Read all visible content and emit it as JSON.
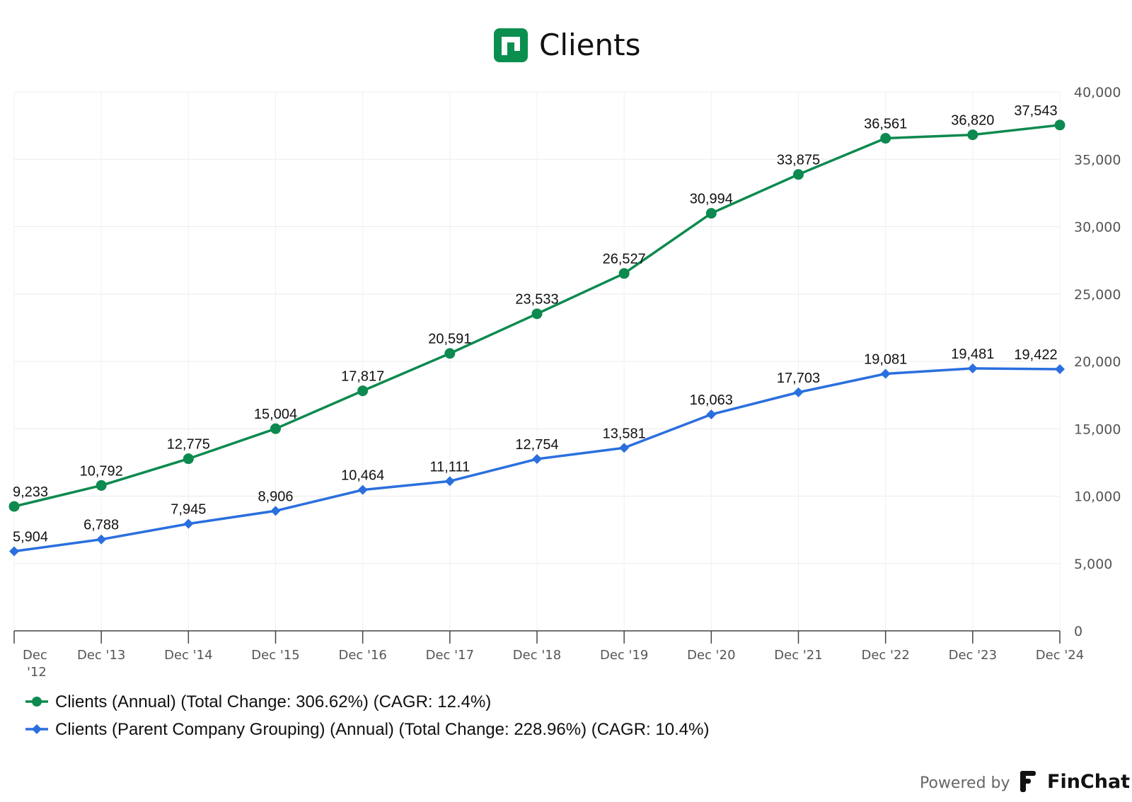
{
  "header": {
    "title": "Clients",
    "logo_icon": "company-logo-icon",
    "logo_color": "#0a8f4e"
  },
  "chart_data": {
    "type": "line",
    "title": "Clients",
    "xlabel": "",
    "ylabel": "",
    "categories": [
      "Dec '12",
      "Dec '13",
      "Dec '14",
      "Dec '15",
      "Dec '16",
      "Dec '17",
      "Dec '18",
      "Dec '19",
      "Dec '20",
      "Dec '21",
      "Dec '22",
      "Dec '23",
      "Dec '24"
    ],
    "yticks": [
      "0",
      "5,000",
      "10,000",
      "15,000",
      "20,000",
      "25,000",
      "30,000",
      "35,000",
      "40,000"
    ],
    "ylim": [
      0,
      40000
    ],
    "y_axis_side": "right",
    "grid": true,
    "legend_position": "bottom-left",
    "series": [
      {
        "name": "Clients (Annual) (Total Change: 306.62%) (CAGR: 12.4%)",
        "color": "#0d8a4f",
        "marker": "circle",
        "values": [
          9233,
          10792,
          12775,
          15004,
          17817,
          20591,
          23533,
          26527,
          30994,
          33875,
          36561,
          36820,
          37543
        ],
        "labels": [
          "9,233",
          "10,792",
          "12,775",
          "15,004",
          "17,817",
          "20,591",
          "23,533",
          "26,527",
          "30,994",
          "33,875",
          "36,561",
          "36,820",
          "37,543"
        ]
      },
      {
        "name": "Clients (Parent Company Grouping) (Annual) (Total Change: 228.96%) (CAGR: 10.4%)",
        "color": "#2a6fde",
        "marker": "diamond",
        "values": [
          5904,
          6788,
          7945,
          8906,
          10464,
          11111,
          12754,
          13581,
          16063,
          17703,
          19081,
          19481,
          19422
        ],
        "labels": [
          "5,904",
          "6,788",
          "7,945",
          "8,906",
          "10,464",
          "11,111",
          "12,754",
          "13,581",
          "16,063",
          "17,703",
          "19,081",
          "19,481",
          "19,422"
        ]
      }
    ]
  },
  "footer": {
    "powered_by": "Powered by",
    "brand": "FinChat",
    "brand_icon": "finchat-logo-icon"
  }
}
